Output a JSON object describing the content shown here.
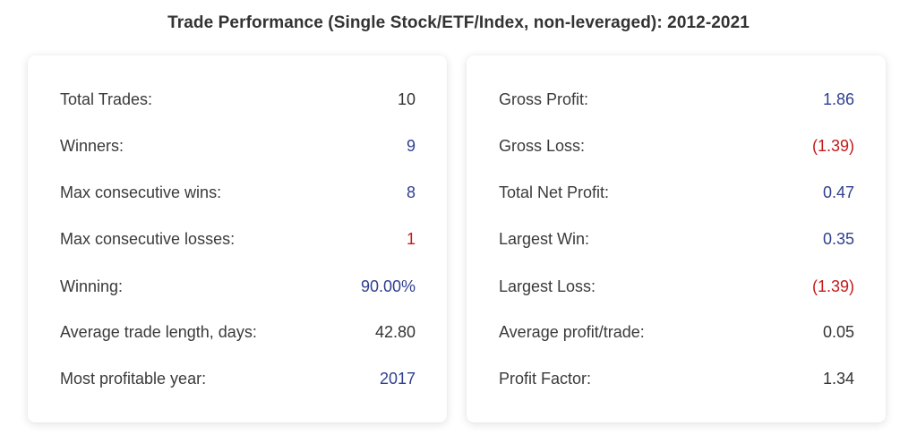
{
  "title": "Trade Performance (Single Stock/ETF/Index, non-leveraged): 2012-2021",
  "left_card": {
    "rows": [
      {
        "label": "Total Trades:",
        "value": "10"
      },
      {
        "label": "Winners:",
        "value": "9"
      },
      {
        "label": "Max consecutive wins:",
        "value": "8"
      },
      {
        "label": "Max consecutive losses:",
        "value": "1"
      },
      {
        "label": "Winning:",
        "value": "90.00%"
      },
      {
        "label": "Average trade length, days:",
        "value": "42.80"
      },
      {
        "label": "Most profitable year:",
        "value": "2017"
      }
    ]
  },
  "right_card": {
    "rows": [
      {
        "label": "Gross Profit:",
        "value": "1.86"
      },
      {
        "label": "Gross Loss:",
        "value": "(1.39)"
      },
      {
        "label": "Total Net Profit:",
        "value": "0.47"
      },
      {
        "label": "Largest Win:",
        "value": "0.35"
      },
      {
        "label": "Largest Loss:",
        "value": "(1.39)"
      },
      {
        "label": "Average profit/trade:",
        "value": "0.05"
      },
      {
        "label": "Profit Factor:",
        "value": "1.34"
      }
    ]
  },
  "colors": {
    "positive": "#2f3f8f",
    "negative": "#c41a1a",
    "neutral": "#333333"
  }
}
